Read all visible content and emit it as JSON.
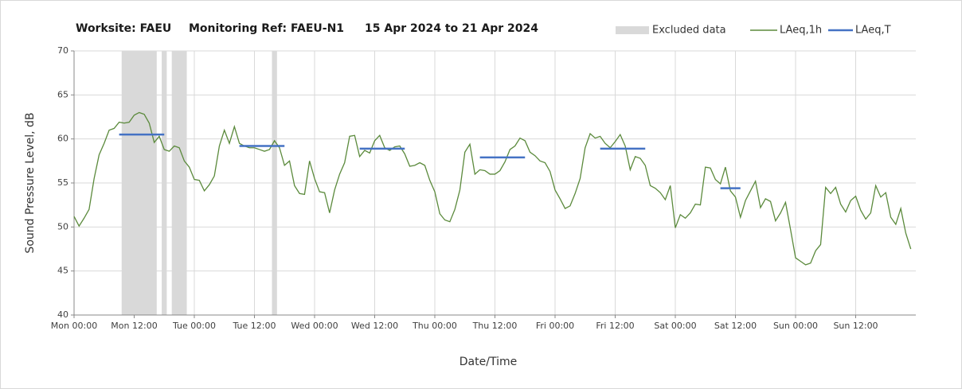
{
  "chart_data": {
    "type": "line",
    "title_parts": [
      "Worksite: FAEU",
      "Monitoring Ref: FAEU-N1",
      "15 Apr 2024 to 21 Apr 2024"
    ],
    "xlabel": "Date/Time",
    "ylabel": "Sound Pressure Level, dB",
    "xlim": [
      0,
      168
    ],
    "xticks": [
      {
        "value": 0,
        "label": "Mon 00:00"
      },
      {
        "value": 12,
        "label": "Mon 12:00"
      },
      {
        "value": 24,
        "label": "Tue 00:00"
      },
      {
        "value": 36,
        "label": "Tue 12:00"
      },
      {
        "value": 48,
        "label": "Wed 00:00"
      },
      {
        "value": 60,
        "label": "Wed 12:00"
      },
      {
        "value": 72,
        "label": "Thu 00:00"
      },
      {
        "value": 84,
        "label": "Thu 12:00"
      },
      {
        "value": 96,
        "label": "Fri 00:00"
      },
      {
        "value": 108,
        "label": "Fri 12:00"
      },
      {
        "value": 120,
        "label": "Sat 00:00"
      },
      {
        "value": 132,
        "label": "Sat 12:00"
      },
      {
        "value": 144,
        "label": "Sun 00:00"
      },
      {
        "value": 156,
        "label": "Sun 12:00"
      }
    ],
    "ylim": [
      40,
      70
    ],
    "yticks": [
      40,
      45,
      50,
      55,
      60,
      65,
      70
    ],
    "grid": true,
    "legend": "top-right",
    "excluded": {
      "name": "Excluded data",
      "color": "#d9d9d9",
      "ranges": [
        [
          9.5,
          16.5
        ],
        [
          17.5,
          18.5
        ],
        [
          19.5,
          22.5
        ],
        [
          39.5,
          40.5
        ]
      ]
    },
    "x": [
      0,
      1,
      2,
      3,
      4,
      5,
      6,
      7,
      8,
      9,
      10,
      11,
      12,
      13,
      14,
      15,
      16,
      17,
      18,
      19,
      20,
      21,
      22,
      23,
      24,
      25,
      26,
      27,
      28,
      29,
      30,
      31,
      32,
      33,
      34,
      35,
      36,
      37,
      38,
      39,
      40,
      41,
      42,
      43,
      44,
      45,
      46,
      47,
      48,
      49,
      50,
      51,
      52,
      53,
      54,
      55,
      56,
      57,
      58,
      59,
      60,
      61,
      62,
      63,
      64,
      65,
      66,
      67,
      68,
      69,
      70,
      71,
      72,
      73,
      74,
      75,
      76,
      77,
      78,
      79,
      80,
      81,
      82,
      83,
      84,
      85,
      86,
      87,
      88,
      89,
      90,
      91,
      92,
      93,
      94,
      95,
      96,
      97,
      98,
      99,
      100,
      101,
      102,
      103,
      104,
      105,
      106,
      107,
      108,
      109,
      110,
      111,
      112,
      113,
      114,
      115,
      116,
      117,
      118,
      119,
      120,
      121,
      122,
      123,
      124,
      125,
      126,
      127,
      128,
      129,
      130,
      131,
      132,
      133,
      134,
      135,
      136,
      137,
      138,
      139,
      140,
      141,
      142,
      143,
      144,
      145,
      146,
      147,
      148,
      149,
      150,
      151,
      152,
      153,
      154,
      155,
      156,
      157,
      158,
      159,
      160,
      161,
      162,
      163,
      164,
      165,
      166,
      167
    ],
    "series": [
      {
        "name": "LAeq,1h",
        "color": "#5b8a3c",
        "values": [
          51.2,
          50.1,
          51,
          52,
          55.5,
          58.2,
          59.5,
          61,
          61.2,
          61.9,
          61.8,
          61.9,
          62.7,
          63,
          62.8,
          61.8,
          59.6,
          60.3,
          58.8,
          58.6,
          59.2,
          59,
          57.5,
          56.8,
          55.4,
          55.3,
          54.1,
          54.8,
          55.8,
          59.2,
          61,
          59.5,
          61.4,
          59.5,
          59.2,
          59,
          59,
          58.8,
          58.6,
          58.8,
          59.8,
          59,
          57,
          57.5,
          54.7,
          53.8,
          53.7,
          57.5,
          55.5,
          54,
          53.9,
          51.6,
          54.2,
          56,
          57.3,
          60.3,
          60.4,
          58,
          58.7,
          58.4,
          59.8,
          60.4,
          59,
          58.7,
          59.1,
          59.2,
          58.3,
          56.9,
          57,
          57.3,
          57,
          55.3,
          54,
          51.5,
          50.8,
          50.6,
          52,
          54.2,
          58.5,
          59.4,
          56,
          56.5,
          56.4,
          56,
          56,
          56.4,
          57.4,
          58.8,
          59.2,
          60.1,
          59.8,
          58.5,
          58.1,
          57.5,
          57.3,
          56.3,
          54.2,
          53.2,
          52.1,
          52.4,
          53.8,
          55.5,
          59,
          60.6,
          60.1,
          60.3,
          59.5,
          59,
          59.7,
          60.5,
          59.2,
          56.5,
          58,
          57.8,
          57,
          54.7,
          54.4,
          53.9,
          53.1,
          54.7,
          49.9,
          51.4,
          51,
          51.6,
          52.6,
          52.5,
          56.8,
          56.7,
          55.4,
          54.9,
          56.8,
          54.1,
          53.4,
          51.1,
          53,
          54.1,
          55.2,
          52.2,
          53.2,
          52.9,
          50.7,
          51.6,
          52.8,
          49.7,
          46.5,
          46.1,
          45.7,
          45.9,
          47.3,
          48,
          54.5,
          53.8,
          54.5,
          52.6,
          51.7,
          53,
          53.5,
          51.9,
          50.9,
          51.6,
          54.7,
          53.4,
          53.9,
          51.1,
          50.3,
          52.1,
          49.3,
          47.5
        ]
      }
    ],
    "periods": {
      "name": "LAeq,T",
      "color": "#4472c4",
      "segments": [
        {
          "start": 9,
          "end": 18,
          "value": 60.5
        },
        {
          "start": 33,
          "end": 42,
          "value": 59.2
        },
        {
          "start": 57,
          "end": 66,
          "value": 58.9
        },
        {
          "start": 81,
          "end": 90,
          "value": 57.9
        },
        {
          "start": 105,
          "end": 114,
          "value": 58.9
        },
        {
          "start": 129,
          "end": 133,
          "value": 54.4
        }
      ]
    }
  }
}
